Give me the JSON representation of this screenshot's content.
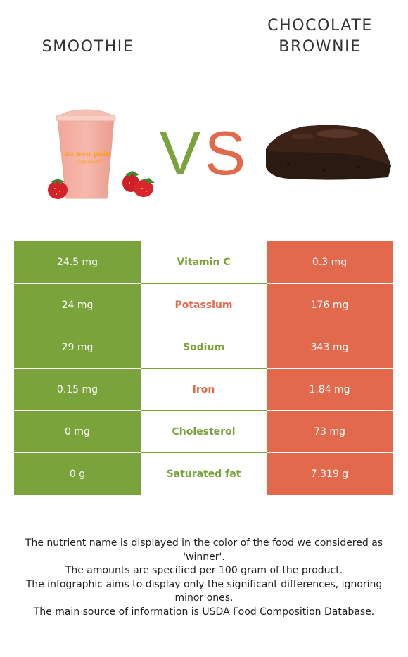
{
  "left_food": {
    "name": "SMOOTHIE",
    "cup_text": "au bon pain",
    "cup_subtext": "cafe bakery"
  },
  "right_food": {
    "name_line1": "CHOCOLATE",
    "name_line2": "BROWNIE"
  },
  "vs_text": "VS",
  "colors": {
    "left": "#7ba33c",
    "right": "#e2694b"
  },
  "rows": [
    {
      "left": "24.5 mg",
      "nutrient": "Vitamin C",
      "right": "0.3 mg",
      "winner": "left"
    },
    {
      "left": "24 mg",
      "nutrient": "Potassium",
      "right": "176 mg",
      "winner": "right"
    },
    {
      "left": "29 mg",
      "nutrient": "Sodium",
      "right": "343 mg",
      "winner": "left"
    },
    {
      "left": "0.15 mg",
      "nutrient": "Iron",
      "right": "1.84 mg",
      "winner": "right"
    },
    {
      "left": "0 mg",
      "nutrient": "Cholesterol",
      "right": "73 mg",
      "winner": "left"
    },
    {
      "left": "0 g",
      "nutrient": "Saturated fat",
      "right": "7.319 g",
      "winner": "left"
    }
  ],
  "notes": [
    "The nutrient name is displayed in the color of the food we considered as 'winner'.",
    "The amounts are specified per 100 gram of the product.",
    "The infographic aims to display only the significant differences, ignoring minor ones.",
    "The main source of information is USDA Food Composition Database."
  ]
}
